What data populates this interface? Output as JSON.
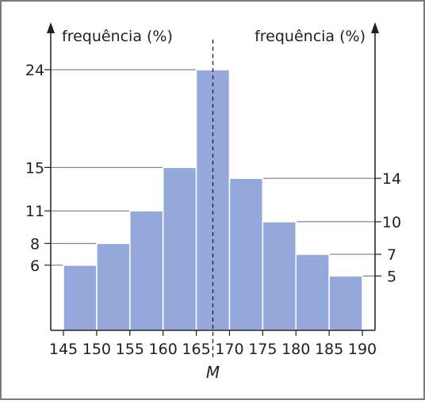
{
  "chart_data": {
    "type": "bar",
    "title": "",
    "ylabel_left": "frequência (%)",
    "ylabel_right": "frequência (%)",
    "xlabel": "",
    "bins": [
      {
        "from": 145,
        "to": 150,
        "value": 6
      },
      {
        "from": 150,
        "to": 155,
        "value": 8
      },
      {
        "from": 155,
        "to": 160,
        "value": 11
      },
      {
        "from": 160,
        "to": 165,
        "value": 15
      },
      {
        "from": 165,
        "to": 170,
        "value": 24
      },
      {
        "from": 170,
        "to": 175,
        "value": 14
      },
      {
        "from": 175,
        "to": 180,
        "value": 10
      },
      {
        "from": 180,
        "to": 185,
        "value": 7
      },
      {
        "from": 185,
        "to": 190,
        "value": 5
      }
    ],
    "x_ticks": [
      145,
      150,
      155,
      160,
      165,
      170,
      175,
      180,
      185,
      190
    ],
    "left_y_ticks": [
      6,
      8,
      11,
      15,
      24
    ],
    "right_y_ticks": [
      5,
      7,
      10,
      14
    ],
    "xlim": [
      145,
      190
    ],
    "ylim": [
      0,
      24
    ],
    "median_marker": {
      "x": 167.5,
      "label": "M"
    },
    "bar_color": "#94a8dc",
    "line_color": "#231f20",
    "frame_color": "#7a7a7a"
  }
}
